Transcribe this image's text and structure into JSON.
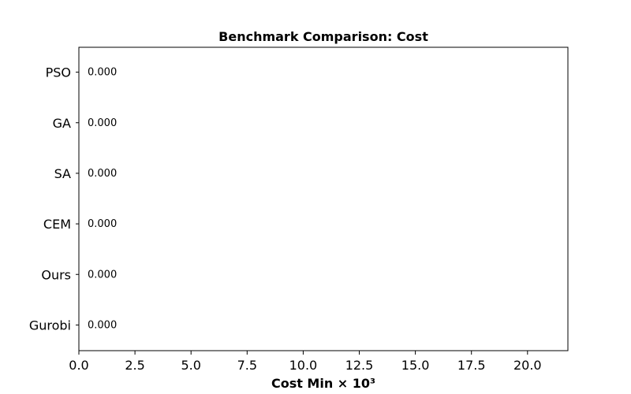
{
  "chart_data": {
    "type": "bar",
    "orientation": "horizontal",
    "title": "Benchmark Comparison: Cost",
    "xlabel": "Cost Min × 10³",
    "ylabel": "",
    "categories": [
      "PSO",
      "GA",
      "SA",
      "CEM",
      "Ours",
      "Gurobi"
    ],
    "values": [
      0.0,
      0.0,
      0.0,
      0.0,
      0.0,
      0.0
    ],
    "data_labels": [
      "0.000",
      "0.000",
      "0.000",
      "0.000",
      "0.000",
      "0.000"
    ],
    "xlim": [
      0,
      21.8
    ],
    "xticks": [
      0,
      2.5,
      5,
      7.5,
      10,
      12.5,
      15,
      17.5,
      20
    ],
    "xtick_labels": [
      "0.0",
      "2.5",
      "5.0",
      "7.5",
      "10.0",
      "12.5",
      "15.0",
      "17.5",
      "20.0"
    ],
    "bar_color": "#1f77b4",
    "grid": false,
    "legend": "none"
  }
}
